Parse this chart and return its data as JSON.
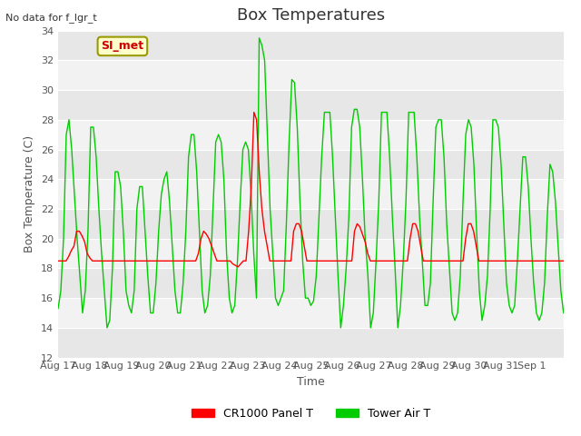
{
  "title": "Box Temperatures",
  "xlabel": "Time",
  "ylabel": "Box Temperature (C)",
  "ylim": [
    12,
    34
  ],
  "yticks": [
    12,
    14,
    16,
    18,
    20,
    22,
    24,
    26,
    28,
    30,
    32,
    34
  ],
  "no_data_text": "No data for f_lgr_t",
  "si_met_label": "SI_met",
  "legend_labels": [
    "CR1000 Panel T",
    "Tower Air T"
  ],
  "line_colors": [
    "#ff0000",
    "#00cc00"
  ],
  "bg_color": "#e8e8e8",
  "plot_bg": "#f0f0f0",
  "fig_bg": "#ffffff",
  "dates": [
    "Aug 17",
    "Aug 18",
    "Aug 19",
    "Aug 20",
    "Aug 21",
    "Aug 22",
    "Aug 23",
    "Aug 24",
    "Aug 25",
    "Aug 26",
    "Aug 27",
    "Aug 28",
    "Aug 29",
    "Aug 30",
    "Aug 31",
    "Sep 1"
  ],
  "panel_t": [
    18.5,
    18.5,
    18.5,
    18.5,
    18.8,
    19.2,
    19.5,
    20.5,
    20.5,
    20.2,
    19.8,
    19.0,
    18.7,
    18.5,
    18.5,
    18.5,
    18.5,
    18.5,
    18.5,
    18.5,
    18.5,
    18.5,
    18.5,
    18.5,
    18.5,
    18.5,
    18.5,
    18.5,
    18.5,
    18.5,
    18.5,
    18.5,
    18.5,
    18.5,
    18.5,
    18.5,
    18.5,
    18.5,
    18.5,
    18.5,
    18.5,
    18.5,
    18.5,
    18.5,
    18.5,
    18.5,
    18.5,
    18.5,
    18.5,
    18.5,
    18.5,
    18.5,
    18.5,
    19.0,
    20.0,
    20.5,
    20.3,
    20.0,
    19.5,
    19.0,
    18.5,
    18.5,
    18.5,
    18.5,
    18.5,
    18.5,
    18.3,
    18.2,
    18.1,
    18.3,
    18.5,
    18.5,
    20.5,
    23.5,
    28.5,
    28.0,
    24.5,
    22.0,
    20.5,
    19.5,
    18.5,
    18.5,
    18.5,
    18.5,
    18.5,
    18.5,
    18.5,
    18.5,
    18.5,
    20.5,
    21.0,
    21.0,
    20.5,
    19.5,
    18.5,
    18.5,
    18.5,
    18.5,
    18.5,
    18.5,
    18.5,
    18.5,
    18.5,
    18.5,
    18.5,
    18.5,
    18.5,
    18.5,
    18.5,
    18.5,
    18.5,
    18.5,
    20.5,
    21.0,
    20.8,
    20.3,
    19.8,
    19.0,
    18.5,
    18.5,
    18.5,
    18.5,
    18.5,
    18.5,
    18.5,
    18.5,
    18.5,
    18.5,
    18.5,
    18.5,
    18.5,
    18.5,
    18.5,
    20.0,
    21.0,
    21.0,
    20.5,
    19.5,
    18.5,
    18.5,
    18.5,
    18.5,
    18.5,
    18.5,
    18.5,
    18.5,
    18.5,
    18.5,
    18.5,
    18.5,
    18.5,
    18.5,
    18.5,
    18.5,
    20.0,
    21.0,
    21.0,
    20.5,
    19.5,
    18.5,
    18.5,
    18.5,
    18.5,
    18.5,
    18.5,
    18.5,
    18.5,
    18.5,
    18.5,
    18.5,
    18.5,
    18.5,
    18.5,
    18.5,
    18.5,
    18.5,
    18.5,
    18.5,
    18.5,
    18.5,
    18.5,
    18.5,
    18.5,
    18.5,
    18.5,
    18.5,
    18.5,
    18.5,
    18.5,
    18.5,
    18.5,
    18.5
  ],
  "tower_t": [
    15.3,
    16.5,
    20.0,
    27.0,
    28.0,
    26.0,
    23.0,
    20.0,
    17.5,
    15.0,
    16.5,
    20.5,
    27.5,
    27.5,
    25.5,
    22.0,
    19.0,
    16.5,
    14.0,
    14.5,
    18.0,
    24.5,
    24.5,
    23.5,
    20.5,
    16.5,
    15.5,
    15.0,
    16.5,
    22.0,
    23.5,
    23.5,
    20.5,
    17.5,
    15.0,
    15.0,
    17.0,
    20.5,
    23.0,
    24.0,
    24.5,
    22.5,
    19.5,
    16.5,
    15.0,
    15.0,
    17.0,
    20.5,
    25.5,
    27.0,
    27.0,
    24.5,
    20.5,
    16.5,
    15.0,
    15.5,
    17.5,
    22.0,
    26.5,
    27.0,
    26.5,
    24.0,
    19.0,
    16.0,
    15.0,
    15.5,
    18.5,
    22.5,
    26.0,
    26.5,
    26.0,
    23.0,
    19.0,
    16.0,
    33.5,
    33.0,
    32.0,
    27.0,
    22.0,
    19.0,
    16.0,
    15.5,
    16.0,
    16.5,
    21.0,
    26.5,
    30.7,
    30.5,
    27.5,
    22.5,
    18.5,
    16.0,
    16.0,
    15.5,
    15.8,
    17.5,
    21.5,
    25.5,
    28.5,
    28.5,
    28.5,
    25.5,
    21.5,
    17.5,
    14.0,
    15.5,
    18.0,
    21.5,
    27.5,
    28.7,
    28.7,
    27.5,
    24.0,
    20.0,
    17.5,
    14.0,
    15.0,
    18.5,
    22.5,
    28.5,
    28.5,
    28.5,
    25.5,
    21.5,
    18.0,
    14.0,
    15.5,
    18.5,
    22.5,
    28.5,
    28.5,
    28.5,
    25.5,
    21.5,
    18.5,
    15.5,
    15.5,
    17.0,
    22.5,
    27.5,
    28.0,
    28.0,
    25.5,
    21.0,
    18.0,
    15.0,
    14.5,
    15.0,
    17.5,
    22.5,
    27.0,
    28.0,
    27.5,
    25.0,
    20.5,
    16.5,
    14.5,
    15.5,
    17.5,
    22.0,
    28.0,
    28.0,
    27.5,
    25.0,
    21.0,
    17.0,
    15.5,
    15.0,
    15.5,
    18.5,
    22.0,
    25.5,
    25.5,
    23.5,
    20.0,
    17.0,
    15.0,
    14.5,
    15.0,
    17.0,
    21.5,
    25.0,
    24.5,
    22.5,
    19.5,
    16.5,
    15.0
  ]
}
